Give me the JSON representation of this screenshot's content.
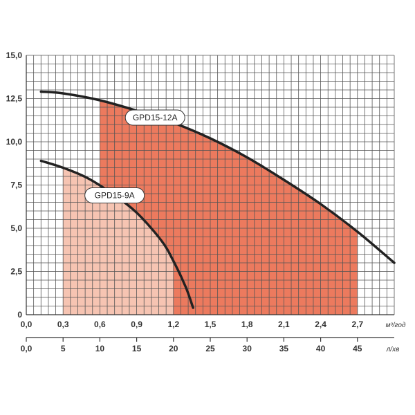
{
  "chart_data": {
    "type": "line",
    "x_unit": "м³/год",
    "x2_unit": "л/хв",
    "xlim": [
      0,
      3.0
    ],
    "ylim": [
      0,
      15
    ],
    "x_ticks": [
      "0,0",
      "0,3",
      "0,6",
      "0,9",
      "1,2",
      "1,5",
      "1,8",
      "2,1",
      "2,4",
      "2,7"
    ],
    "x_tick_values": [
      0,
      0.3,
      0.6,
      0.9,
      1.2,
      1.5,
      1.8,
      2.1,
      2.4,
      2.7
    ],
    "x2_ticks": [
      "0,0",
      "5",
      "10",
      "15",
      "20",
      "25",
      "30",
      "35",
      "40",
      "45"
    ],
    "x2_tick_values": [
      0,
      5,
      10,
      15,
      20,
      25,
      30,
      35,
      40,
      45
    ],
    "y_ticks": [
      "0",
      "2,5",
      "5,0",
      "7,5",
      "10,0",
      "12,5",
      "15,0"
    ],
    "y_tick_values": [
      0,
      2.5,
      5,
      7.5,
      10,
      12.5,
      15
    ],
    "grid": true,
    "series": [
      {
        "name": "GPD15-12A",
        "color": "#222222",
        "x": [
          0.12,
          0.3,
          0.6,
          0.9,
          1.2,
          1.5,
          1.8,
          2.1,
          2.4,
          2.7,
          3.0
        ],
        "y": [
          12.9,
          12.8,
          12.4,
          11.8,
          11.1,
          10.2,
          9.1,
          7.8,
          6.4,
          4.8,
          3.0
        ]
      },
      {
        "name": "GPD15-9A",
        "color": "#222222",
        "x": [
          0.12,
          0.3,
          0.5,
          0.7,
          0.9,
          1.1,
          1.2,
          1.3,
          1.36
        ],
        "y": [
          8.9,
          8.5,
          7.9,
          7.0,
          5.9,
          4.3,
          3.1,
          1.6,
          0.4
        ]
      }
    ],
    "regions": [
      {
        "series": "GPD15-12A",
        "x_from": 0.6,
        "x_to": 2.7,
        "color": "#ec7a5e"
      },
      {
        "series": "GPD15-9A",
        "x_from": 0.3,
        "x_to": 1.2,
        "color": "#f6c4b2"
      }
    ]
  }
}
